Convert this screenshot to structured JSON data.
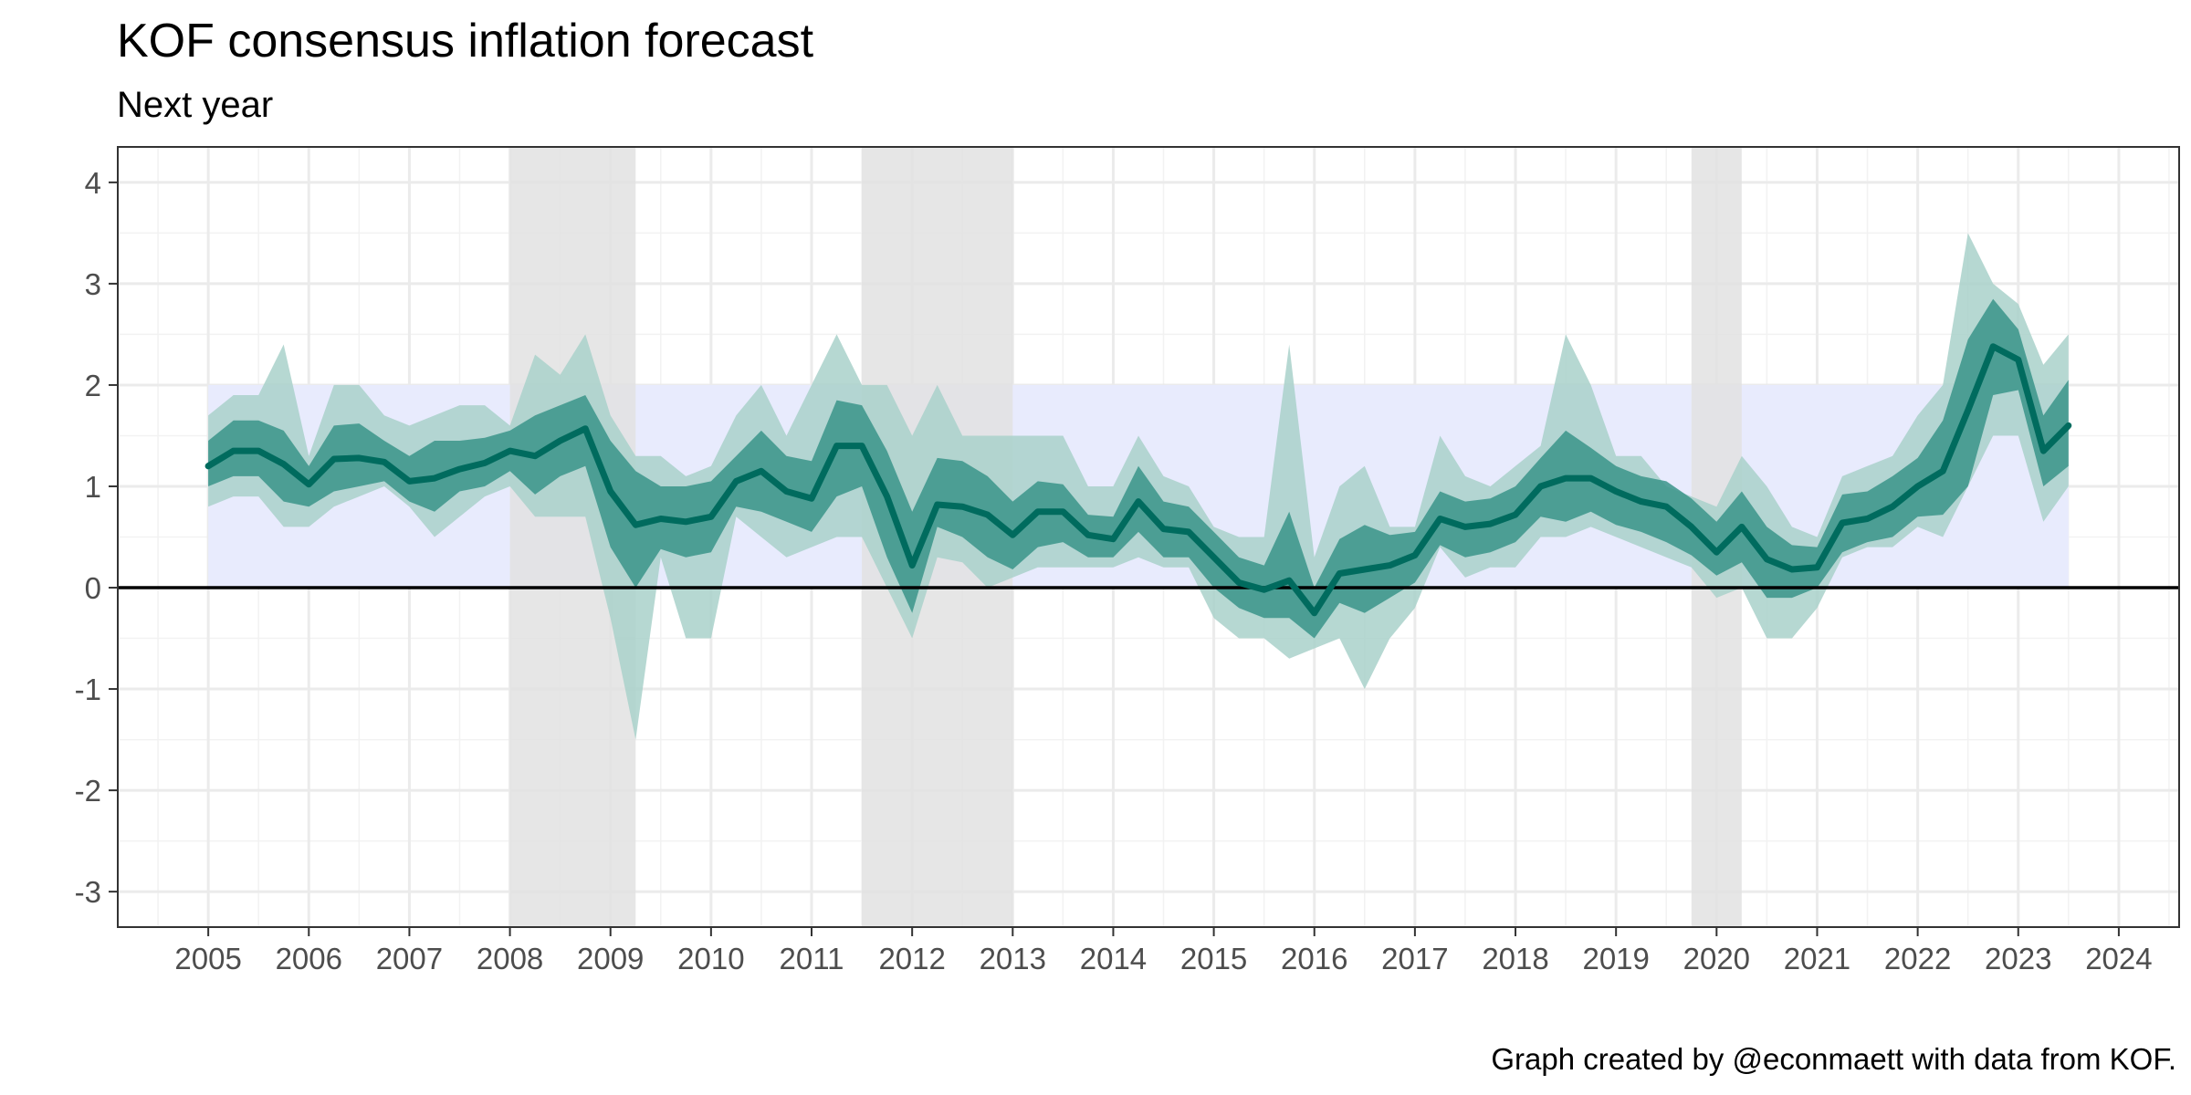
{
  "chart_data": {
    "type": "area",
    "title": "KOF consensus inflation forecast",
    "subtitle": "Next year",
    "caption": "Graph created by @econmaett with data from KOF.",
    "xlabel": "",
    "ylabel": "",
    "xlim": [
      2004.1,
      2024.6
    ],
    "ylim": [
      -3.35,
      4.35
    ],
    "x_ticks": [
      2005,
      2006,
      2007,
      2008,
      2009,
      2010,
      2011,
      2012,
      2013,
      2014,
      2015,
      2016,
      2017,
      2018,
      2019,
      2020,
      2021,
      2022,
      2023,
      2024
    ],
    "y_ticks": [
      -3,
      -2,
      -1,
      0,
      1,
      2,
      3,
      4
    ],
    "grid": true,
    "zero_line": 0,
    "target_band": {
      "y_min": 0,
      "y_max": 2,
      "x_start": 2005,
      "x_end": 2023.5,
      "color": "#e8ebfd"
    },
    "recession_shading": [
      {
        "start": 2008.0,
        "end": 2009.25
      },
      {
        "start": 2011.5,
        "end": 2013.0
      },
      {
        "start": 2019.75,
        "end": 2020.25
      }
    ],
    "colors": {
      "median": "#006b5e",
      "inner_band": "#3a948a",
      "outer_band": "#a9d1ca",
      "recession": "#e2e2e2",
      "zero_line": "#000000"
    },
    "x": [
      2005.0,
      2005.25,
      2005.5,
      2005.75,
      2006.0,
      2006.25,
      2006.5,
      2006.75,
      2007.0,
      2007.25,
      2007.5,
      2007.75,
      2008.0,
      2008.25,
      2008.5,
      2008.75,
      2009.0,
      2009.25,
      2009.5,
      2009.75,
      2010.0,
      2010.25,
      2010.5,
      2010.75,
      2011.0,
      2011.25,
      2011.5,
      2011.75,
      2012.0,
      2012.25,
      2012.5,
      2012.75,
      2013.0,
      2013.25,
      2013.5,
      2013.75,
      2014.0,
      2014.25,
      2014.5,
      2014.75,
      2015.0,
      2015.25,
      2015.5,
      2015.75,
      2016.0,
      2016.25,
      2016.5,
      2016.75,
      2017.0,
      2017.25,
      2017.5,
      2017.75,
      2018.0,
      2018.25,
      2018.5,
      2018.75,
      2019.0,
      2019.25,
      2019.5,
      2019.75,
      2020.0,
      2020.25,
      2020.5,
      2020.75,
      2021.0,
      2021.25,
      2021.5,
      2021.75,
      2022.0,
      2022.25,
      2022.5,
      2022.75,
      2023.0,
      2023.25,
      2023.5
    ],
    "median": [
      1.2,
      1.35,
      1.35,
      1.22,
      1.02,
      1.27,
      1.28,
      1.24,
      1.05,
      1.08,
      1.17,
      1.23,
      1.35,
      1.3,
      1.45,
      1.57,
      0.95,
      0.62,
      0.68,
      0.65,
      0.7,
      1.05,
      1.15,
      0.95,
      0.88,
      1.4,
      1.4,
      0.9,
      0.22,
      0.82,
      0.8,
      0.72,
      0.52,
      0.75,
      0.75,
      0.52,
      0.48,
      0.85,
      0.58,
      0.55,
      0.3,
      0.05,
      -0.02,
      0.07,
      -0.25,
      0.14,
      0.18,
      0.22,
      0.32,
      0.68,
      0.6,
      0.63,
      0.72,
      1.0,
      1.08,
      1.08,
      0.95,
      0.85,
      0.8,
      0.6,
      0.35,
      0.6,
      0.28,
      0.18,
      0.2,
      0.64,
      0.68,
      0.8,
      1.0,
      1.15,
      1.75,
      2.38,
      2.25,
      1.35,
      1.6
    ],
    "inner_low": [
      1.0,
      1.1,
      1.1,
      0.85,
      0.8,
      0.95,
      1.0,
      1.05,
      0.85,
      0.75,
      0.95,
      1.0,
      1.15,
      0.92,
      1.1,
      1.2,
      0.4,
      0.0,
      0.38,
      0.3,
      0.35,
      0.8,
      0.75,
      0.65,
      0.55,
      0.9,
      1.0,
      0.3,
      -0.25,
      0.6,
      0.5,
      0.3,
      0.18,
      0.4,
      0.45,
      0.3,
      0.3,
      0.55,
      0.3,
      0.3,
      0.0,
      -0.2,
      -0.3,
      -0.3,
      -0.5,
      -0.15,
      -0.25,
      -0.1,
      0.05,
      0.42,
      0.3,
      0.35,
      0.45,
      0.7,
      0.65,
      0.75,
      0.62,
      0.55,
      0.45,
      0.32,
      0.12,
      0.25,
      -0.1,
      -0.1,
      0.0,
      0.35,
      0.45,
      0.5,
      0.7,
      0.72,
      1.0,
      1.9,
      1.95,
      1.0,
      1.2
    ],
    "inner_high": [
      1.45,
      1.65,
      1.65,
      1.55,
      1.2,
      1.6,
      1.62,
      1.45,
      1.3,
      1.45,
      1.45,
      1.48,
      1.55,
      1.7,
      1.8,
      1.9,
      1.45,
      1.15,
      1.0,
      1.0,
      1.05,
      1.3,
      1.55,
      1.3,
      1.25,
      1.85,
      1.8,
      1.35,
      0.75,
      1.28,
      1.25,
      1.1,
      0.85,
      1.05,
      1.02,
      0.72,
      0.7,
      1.2,
      0.85,
      0.8,
      0.55,
      0.3,
      0.22,
      0.75,
      0.0,
      0.48,
      0.62,
      0.52,
      0.55,
      0.95,
      0.85,
      0.88,
      1.0,
      1.28,
      1.55,
      1.38,
      1.2,
      1.1,
      1.05,
      0.88,
      0.65,
      0.95,
      0.6,
      0.42,
      0.4,
      0.92,
      0.95,
      1.1,
      1.28,
      1.65,
      2.45,
      2.85,
      2.55,
      1.7,
      2.05
    ],
    "outer_low": [
      0.8,
      0.9,
      0.9,
      0.6,
      0.6,
      0.8,
      0.9,
      1.0,
      0.8,
      0.5,
      0.7,
      0.9,
      1.0,
      0.7,
      0.7,
      0.7,
      -0.3,
      -1.5,
      0.3,
      -0.5,
      -0.5,
      0.7,
      0.5,
      0.3,
      0.4,
      0.5,
      0.5,
      0.0,
      -0.5,
      0.3,
      0.25,
      0.0,
      0.1,
      0.2,
      0.2,
      0.2,
      0.2,
      0.3,
      0.2,
      0.2,
      -0.3,
      -0.5,
      -0.5,
      -0.7,
      -0.6,
      -0.5,
      -1.0,
      -0.5,
      -0.2,
      0.4,
      0.1,
      0.2,
      0.2,
      0.5,
      0.5,
      0.6,
      0.5,
      0.4,
      0.3,
      0.2,
      -0.1,
      0.0,
      -0.5,
      -0.5,
      -0.2,
      0.3,
      0.4,
      0.4,
      0.6,
      0.5,
      1.0,
      1.5,
      1.5,
      0.65,
      1.0
    ],
    "outer_high": [
      1.7,
      1.9,
      1.9,
      2.4,
      1.3,
      2.0,
      2.0,
      1.7,
      1.6,
      1.7,
      1.8,
      1.8,
      1.6,
      2.3,
      2.1,
      2.5,
      1.7,
      1.3,
      1.3,
      1.1,
      1.2,
      1.7,
      2.0,
      1.5,
      2.0,
      2.5,
      2.0,
      2.0,
      1.5,
      2.0,
      1.5,
      1.5,
      1.5,
      1.5,
      1.5,
      1.0,
      1.0,
      1.5,
      1.1,
      1.0,
      0.6,
      0.5,
      0.5,
      2.4,
      0.3,
      1.0,
      1.2,
      0.6,
      0.6,
      1.5,
      1.1,
      1.0,
      1.2,
      1.4,
      2.5,
      2.0,
      1.3,
      1.3,
      1.0,
      0.9,
      0.8,
      1.3,
      1.0,
      0.6,
      0.5,
      1.1,
      1.2,
      1.3,
      1.7,
      2.0,
      3.5,
      3.0,
      2.8,
      2.2,
      2.5
    ]
  }
}
